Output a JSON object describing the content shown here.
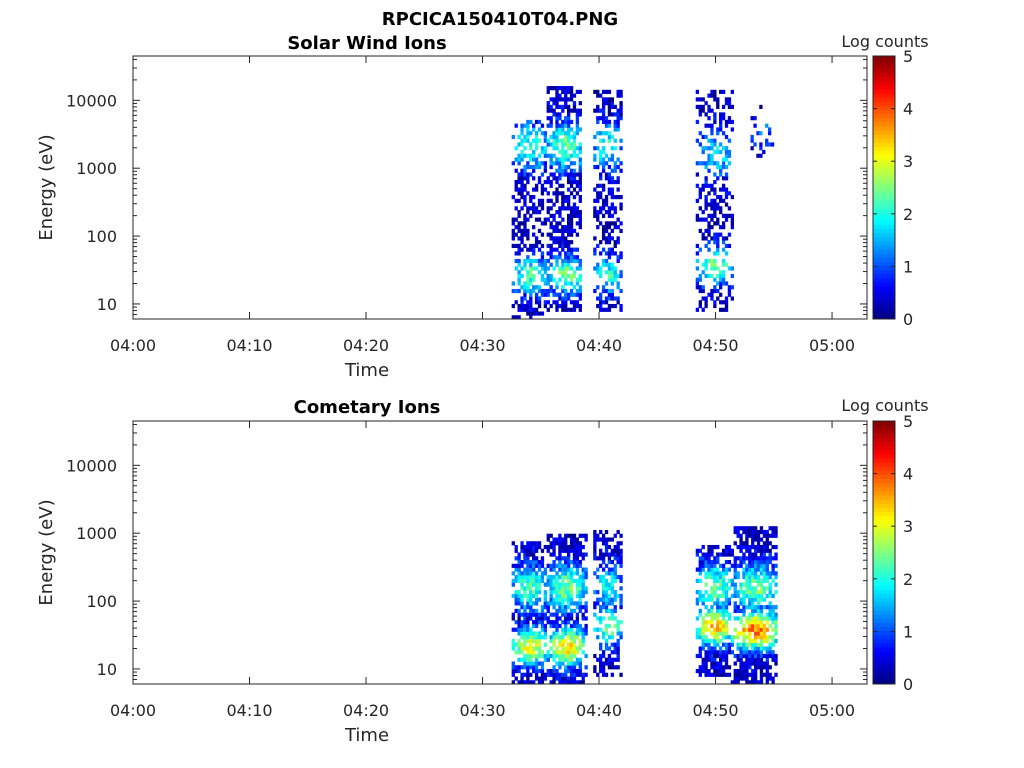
{
  "figure": {
    "title": "RPCICA150410T04.PNG"
  },
  "chart_data": [
    {
      "type": "heatmap",
      "title": "Solar Wind Ions",
      "xlabel": "Time",
      "ylabel": "Energy (eV)",
      "x_ticks": [
        "04:00",
        "04:10",
        "04:20",
        "04:30",
        "04:40",
        "04:50",
        "05:00"
      ],
      "x_range_minutes": [
        0,
        63
      ],
      "y_scale": "log",
      "y_ticks": [
        "10",
        "100",
        "1000",
        "10000"
      ],
      "y_range": [
        6,
        45000
      ],
      "colorbar": {
        "label": "Log counts",
        "ticks": [
          "0",
          "1",
          "2",
          "3",
          "4",
          "5"
        ],
        "range": [
          0,
          5
        ],
        "colormap": "jet"
      },
      "bursts": [
        {
          "start_min": 32.5,
          "end_min": 35.5,
          "emin": 6,
          "emax": 5000,
          "peak_energy": 25,
          "peak_log_counts": 2.0,
          "secondary_energy": 2000,
          "secondary_log_counts": 1.8,
          "density": 0.5
        },
        {
          "start_min": 35.5,
          "end_min": 38.5,
          "emin": 8,
          "emax": 15000,
          "peak_energy": 25,
          "peak_log_counts": 2.2,
          "secondary_energy": 2000,
          "secondary_log_counts": 2.2,
          "density": 0.6
        },
        {
          "start_min": 39.5,
          "end_min": 41.8,
          "emin": 8,
          "emax": 14000,
          "peak_energy": 25,
          "peak_log_counts": 1.8,
          "secondary_energy": 2000,
          "secondary_log_counts": 1.8,
          "density": 0.45
        },
        {
          "start_min": 48.3,
          "end_min": 51.5,
          "emin": 8,
          "emax": 13000,
          "peak_energy": 35,
          "peak_log_counts": 2.2,
          "secondary_energy": 1500,
          "secondary_log_counts": 1.5,
          "density": 0.4
        },
        {
          "start_min": 53.0,
          "end_min": 55.0,
          "emin": 1500,
          "emax": 8000,
          "peak_energy": 3000,
          "peak_log_counts": 0.8,
          "secondary_energy": 3000,
          "secondary_log_counts": 0.8,
          "density": 0.15
        }
      ]
    },
    {
      "type": "heatmap",
      "title": "Cometary Ions",
      "xlabel": "Time",
      "ylabel": "Energy (eV)",
      "x_ticks": [
        "04:00",
        "04:10",
        "04:20",
        "04:30",
        "04:40",
        "04:50",
        "05:00"
      ],
      "x_range_minutes": [
        0,
        63
      ],
      "y_scale": "log",
      "y_ticks": [
        "10",
        "100",
        "1000",
        "10000"
      ],
      "y_range": [
        6,
        45000
      ],
      "colorbar": {
        "label": "Log counts",
        "ticks": [
          "0",
          "1",
          "2",
          "3",
          "4",
          "5"
        ],
        "range": [
          0,
          5
        ],
        "colormap": "jet"
      },
      "bursts": [
        {
          "start_min": 32.5,
          "end_min": 35.5,
          "emin": 6,
          "emax": 700,
          "peak_energy": 20,
          "peak_log_counts": 2.8,
          "secondary_energy": 150,
          "secondary_log_counts": 2.0,
          "density": 0.75
        },
        {
          "start_min": 35.5,
          "end_min": 38.8,
          "emin": 6,
          "emax": 900,
          "peak_energy": 20,
          "peak_log_counts": 3.0,
          "secondary_energy": 150,
          "secondary_log_counts": 2.2,
          "density": 0.8
        },
        {
          "start_min": 39.5,
          "end_min": 42.0,
          "emin": 8,
          "emax": 1000,
          "peak_energy": 40,
          "peak_log_counts": 2.2,
          "secondary_energy": 150,
          "secondary_log_counts": 1.6,
          "density": 0.6
        },
        {
          "start_min": 48.3,
          "end_min": 51.3,
          "emin": 8,
          "emax": 600,
          "peak_energy": 40,
          "peak_log_counts": 3.2,
          "secondary_energy": 150,
          "secondary_log_counts": 2.2,
          "density": 0.75
        },
        {
          "start_min": 51.3,
          "end_min": 55.3,
          "emin": 6,
          "emax": 1200,
          "peak_energy": 35,
          "peak_log_counts": 3.6,
          "secondary_energy": 150,
          "secondary_log_counts": 2.2,
          "density": 0.8
        }
      ]
    }
  ]
}
